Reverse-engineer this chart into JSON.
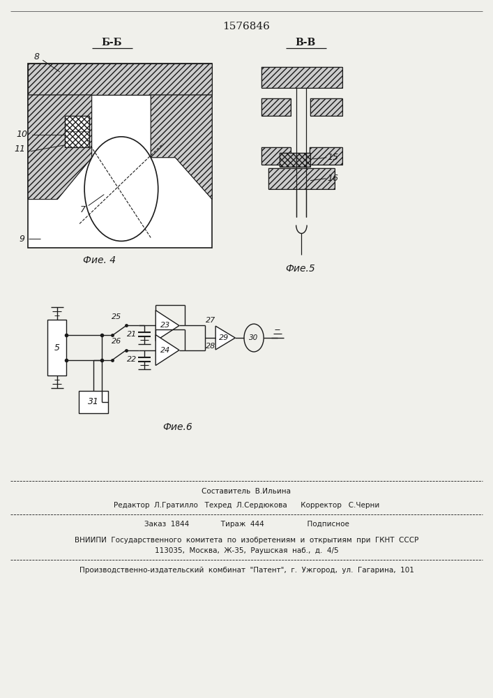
{
  "title_number": "1576846",
  "bg_color": "#f0f0eb",
  "line_color": "#1a1a1a",
  "fig4_label": "Фие. 4",
  "fig5_label": "Фие.5",
  "fig6_label": "Фие.6",
  "section_bb": "Б-Б",
  "section_vv": "В-В",
  "footer_line1": "Составитель  В.Ильина",
  "footer_line2": "Редактор  Л.Гратилло   Техред  Л.Сердюкова      Корректор   С.Черни",
  "footer_line3": "Заказ  1844              Тираж  444                   Подписное",
  "footer_line4": "ВНИИПИ  Государственного  комитета  по  изобретениям  и  открытиям  при  ГКНТ  СССР",
  "footer_line5": "113035,  Москва,  Ж-35,  Раушская  наб.,  д.  4/5",
  "footer_line6": "Производственно-издательский  комбинат  \"Патент\",  г.  Ужгород,  ул.  Гагарина,  101"
}
